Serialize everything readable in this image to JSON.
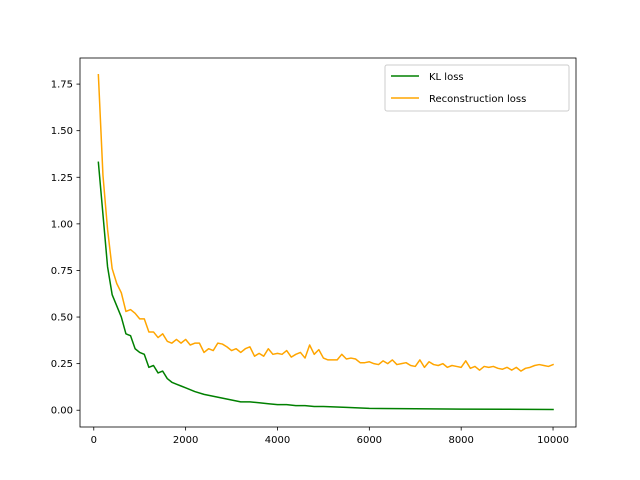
{
  "chart_data": {
    "type": "line",
    "title": "",
    "xlabel": "",
    "ylabel": "",
    "xlim": [
      -300,
      10500
    ],
    "ylim": [
      -0.09,
      1.89
    ],
    "xticks": [
      {
        "value": 0,
        "label": "0"
      },
      {
        "value": 2000,
        "label": "2000"
      },
      {
        "value": 4000,
        "label": "4000"
      },
      {
        "value": 6000,
        "label": "6000"
      },
      {
        "value": 8000,
        "label": "8000"
      },
      {
        "value": 10000,
        "label": "10000"
      }
    ],
    "yticks": [
      {
        "value": 0.0,
        "label": "0.00"
      },
      {
        "value": 0.25,
        "label": "0.25"
      },
      {
        "value": 0.5,
        "label": "0.50"
      },
      {
        "value": 0.75,
        "label": "0.75"
      },
      {
        "value": 1.0,
        "label": "1.00"
      },
      {
        "value": 1.25,
        "label": "1.25"
      },
      {
        "value": 1.5,
        "label": "1.50"
      },
      {
        "value": 1.75,
        "label": "1.75"
      }
    ],
    "grid": false,
    "legend_position": "top-right",
    "series": [
      {
        "name": "KL loss",
        "color": "#008000",
        "x": [
          100,
          300,
          400,
          600,
          700,
          800,
          900,
          1000,
          1100,
          1200,
          1300,
          1400,
          1500,
          1600,
          1700,
          1800,
          1900,
          2000,
          2200,
          2400,
          2600,
          2800,
          3000,
          3200,
          3400,
          3600,
          3800,
          4000,
          4200,
          4400,
          4600,
          4800,
          5000,
          5500,
          6000,
          7000,
          8000,
          9000,
          10000
        ],
        "y": [
          1.33,
          0.77,
          0.62,
          0.5,
          0.41,
          0.4,
          0.33,
          0.31,
          0.3,
          0.23,
          0.24,
          0.2,
          0.21,
          0.17,
          0.15,
          0.14,
          0.13,
          0.12,
          0.1,
          0.085,
          0.075,
          0.065,
          0.055,
          0.045,
          0.045,
          0.04,
          0.035,
          0.03,
          0.03,
          0.025,
          0.025,
          0.02,
          0.02,
          0.015,
          0.01,
          0.008,
          0.006,
          0.005,
          0.004
        ]
      },
      {
        "name": "Reconstruction loss",
        "color": "#ffa500",
        "x": [
          100,
          200,
          300,
          400,
          500,
          600,
          700,
          800,
          900,
          1000,
          1100,
          1200,
          1300,
          1400,
          1500,
          1600,
          1700,
          1800,
          1900,
          2000,
          2100,
          2200,
          2300,
          2400,
          2500,
          2600,
          2700,
          2800,
          2900,
          3000,
          3100,
          3200,
          3300,
          3400,
          3500,
          3600,
          3700,
          3800,
          3900,
          4000,
          4100,
          4200,
          4300,
          4400,
          4500,
          4600,
          4700,
          4800,
          4900,
          5000,
          5100,
          5200,
          5300,
          5400,
          5500,
          5600,
          5700,
          5800,
          5900,
          6000,
          6100,
          6200,
          6300,
          6400,
          6500,
          6600,
          6700,
          6800,
          6900,
          7000,
          7100,
          7200,
          7300,
          7400,
          7500,
          7600,
          7700,
          7800,
          7900,
          8000,
          8100,
          8200,
          8300,
          8400,
          8500,
          8600,
          8700,
          8800,
          8900,
          9000,
          9100,
          9200,
          9300,
          9400,
          9500,
          9600,
          9700,
          9800,
          9900,
          10000
        ],
        "y": [
          1.8,
          1.26,
          0.97,
          0.76,
          0.68,
          0.63,
          0.53,
          0.54,
          0.52,
          0.49,
          0.49,
          0.42,
          0.42,
          0.39,
          0.41,
          0.37,
          0.36,
          0.38,
          0.36,
          0.38,
          0.35,
          0.36,
          0.36,
          0.31,
          0.33,
          0.32,
          0.36,
          0.355,
          0.34,
          0.32,
          0.33,
          0.31,
          0.33,
          0.34,
          0.29,
          0.305,
          0.29,
          0.33,
          0.3,
          0.305,
          0.3,
          0.32,
          0.285,
          0.3,
          0.31,
          0.28,
          0.35,
          0.3,
          0.325,
          0.28,
          0.27,
          0.27,
          0.27,
          0.3,
          0.275,
          0.28,
          0.275,
          0.255,
          0.255,
          0.26,
          0.25,
          0.245,
          0.265,
          0.25,
          0.27,
          0.245,
          0.25,
          0.255,
          0.24,
          0.235,
          0.27,
          0.23,
          0.26,
          0.245,
          0.24,
          0.25,
          0.23,
          0.24,
          0.235,
          0.23,
          0.265,
          0.225,
          0.235,
          0.215,
          0.235,
          0.23,
          0.235,
          0.225,
          0.22,
          0.23,
          0.215,
          0.23,
          0.21,
          0.225,
          0.23,
          0.24,
          0.245,
          0.24,
          0.235,
          0.245
        ]
      }
    ]
  }
}
